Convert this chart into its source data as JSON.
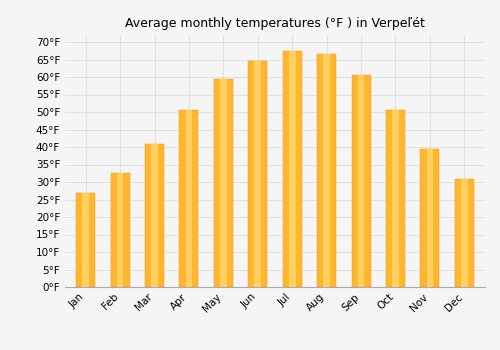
{
  "title": "Average monthly temperatures (°F ) in Verpeľét",
  "months": [
    "Jan",
    "Feb",
    "Mar",
    "Apr",
    "May",
    "Jun",
    "Jul",
    "Aug",
    "Sep",
    "Oct",
    "Nov",
    "Dec"
  ],
  "values": [
    27,
    32.5,
    41,
    50.5,
    59.5,
    64.5,
    67.5,
    66.5,
    60.5,
    50.5,
    39.5,
    31
  ],
  "bar_color_main": "#FFB52E",
  "bar_color_light": "#FFD060",
  "bar_color_dark": "#F59500",
  "ylim": [
    0,
    72
  ],
  "yticks": [
    0,
    5,
    10,
    15,
    20,
    25,
    30,
    35,
    40,
    45,
    50,
    55,
    60,
    65,
    70
  ],
  "background_color": "#f5f5f5",
  "plot_bg_color": "#f5f5f5",
  "grid_color": "#dddddd",
  "title_fontsize": 9,
  "tick_fontsize": 7.5,
  "bar_width": 0.55
}
